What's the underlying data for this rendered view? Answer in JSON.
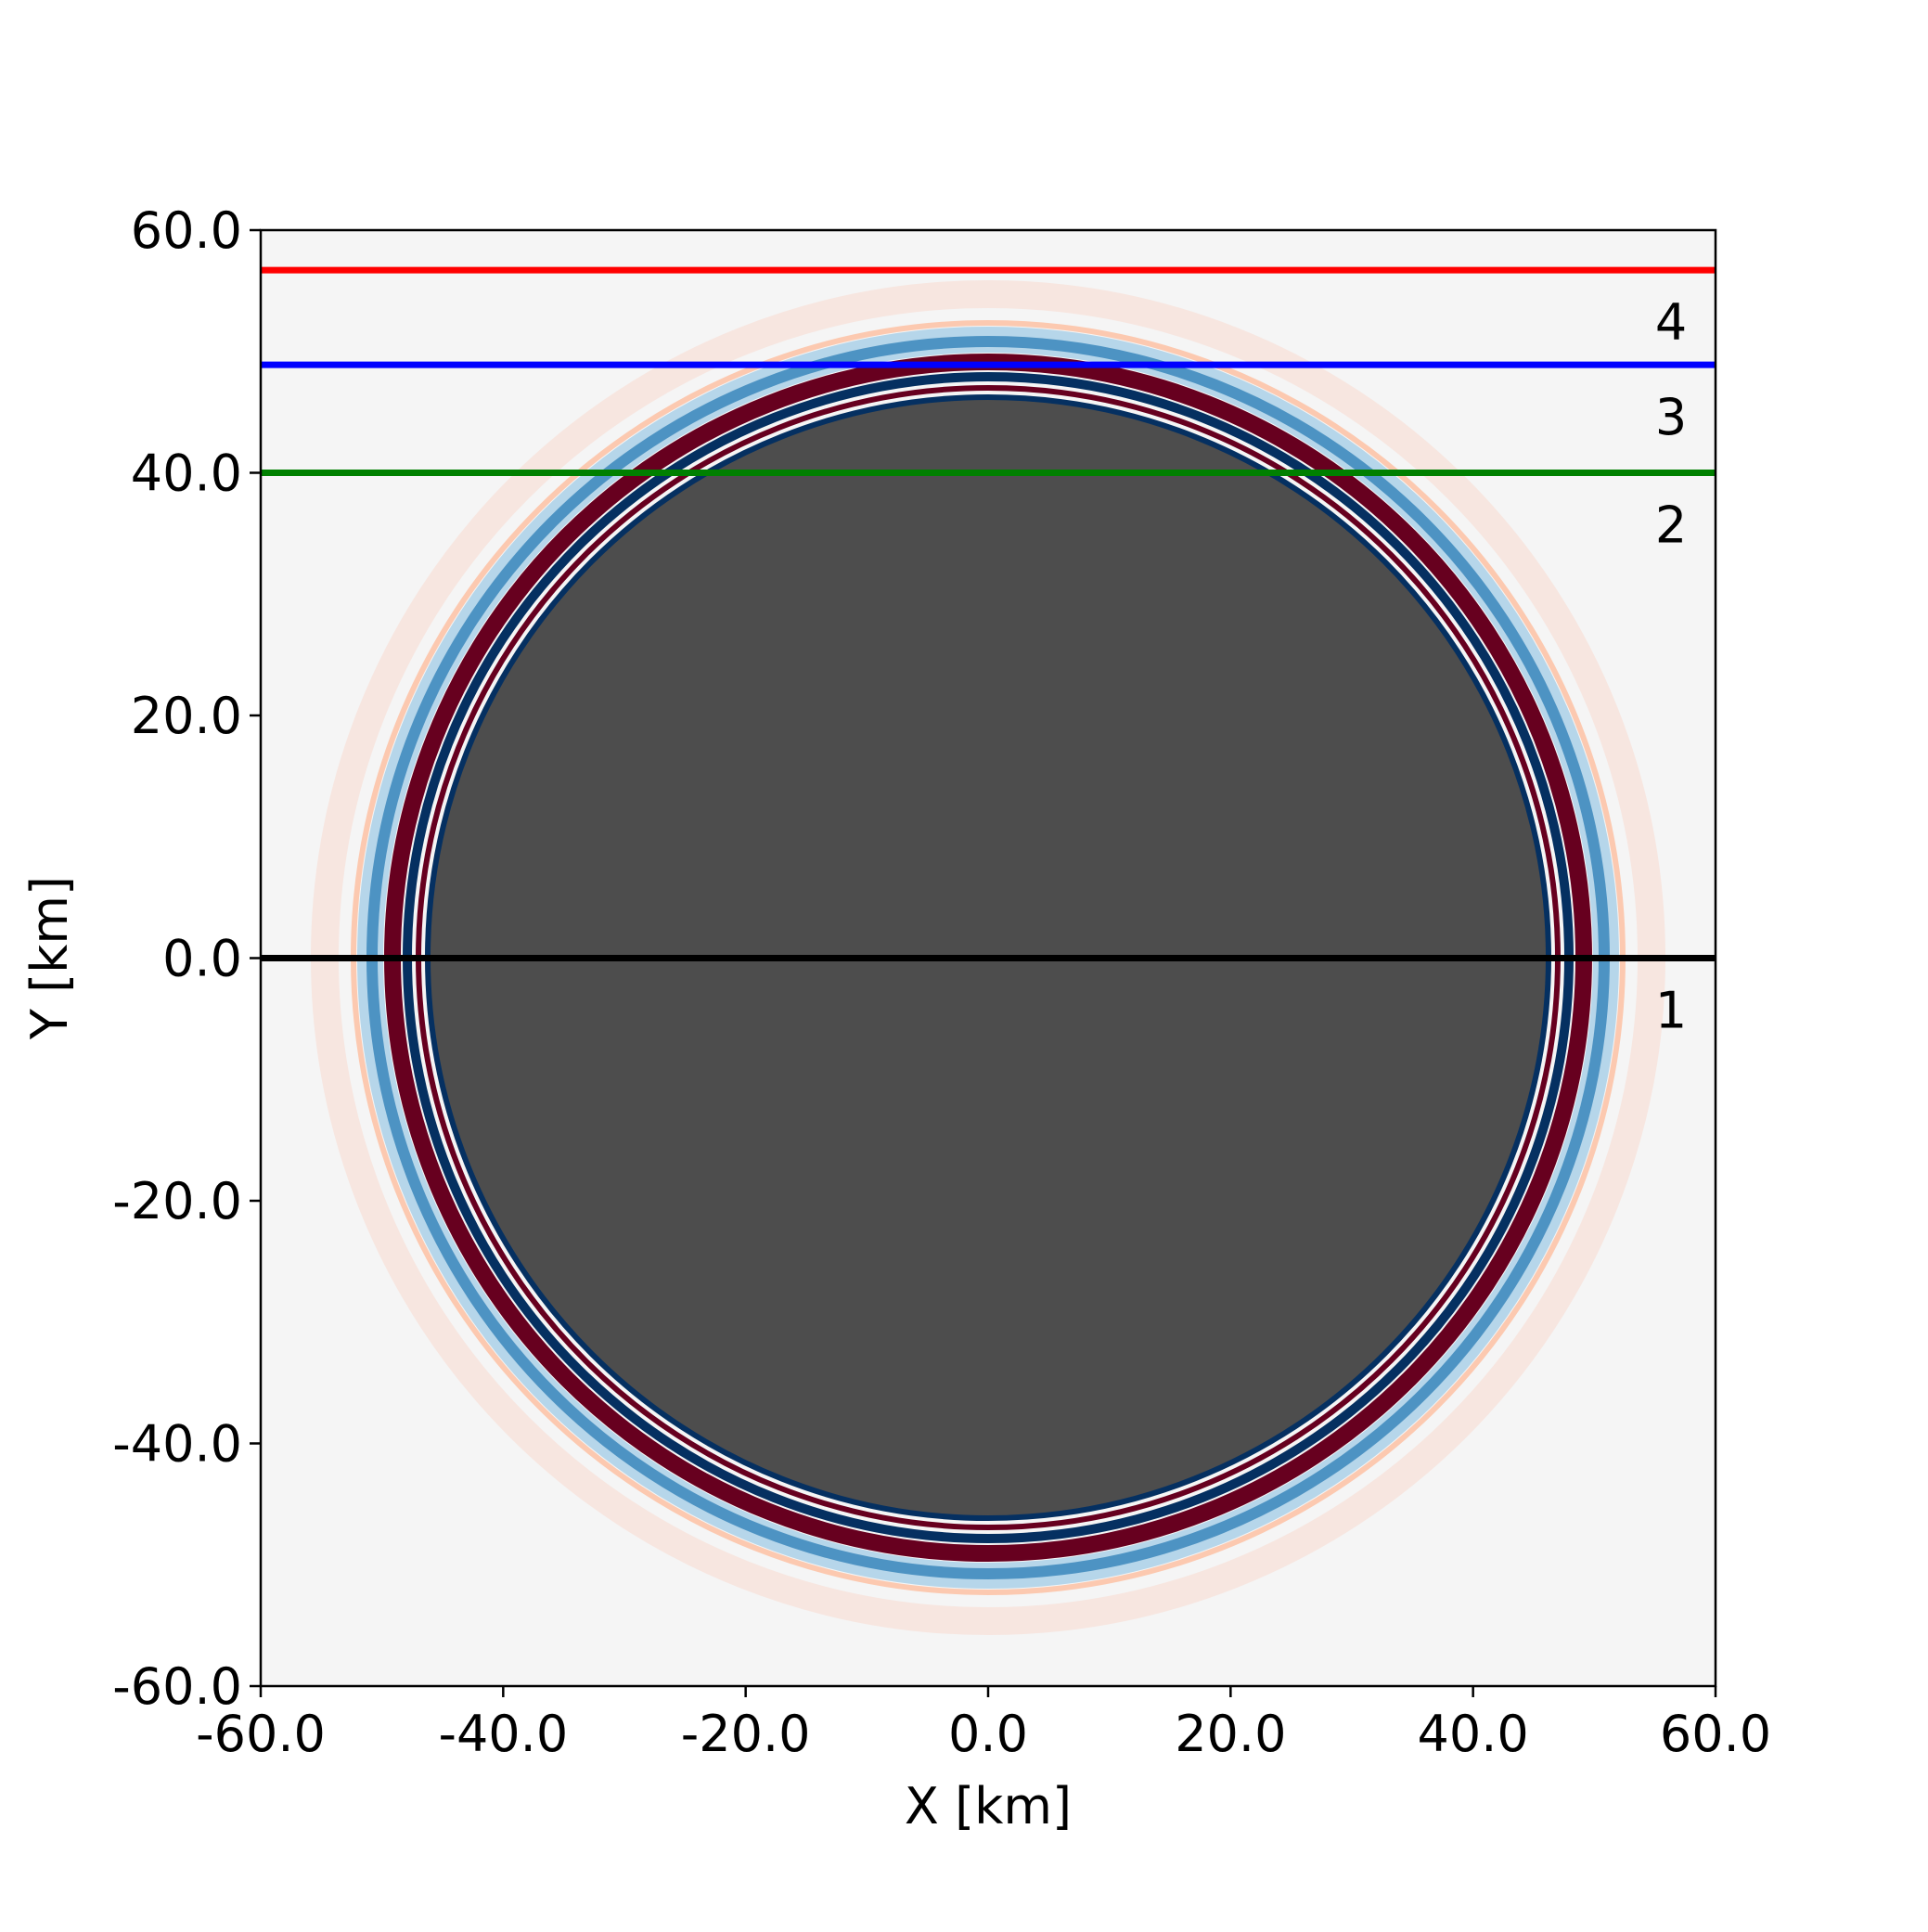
{
  "chart_data": {
    "type": "hlines",
    "xlabel": "X [km]",
    "ylabel": "Y [km]",
    "xlim": [
      -60,
      60
    ],
    "ylim": [
      -60,
      60
    ],
    "xticks": [
      {
        "value": -60,
        "label": "-60.0"
      },
      {
        "value": -40,
        "label": "-40.0"
      },
      {
        "value": -20,
        "label": "-20.0"
      },
      {
        "value": 0,
        "label": "0.0"
      },
      {
        "value": 20,
        "label": "20.0"
      },
      {
        "value": 40,
        "label": "40.0"
      },
      {
        "value": 60,
        "label": "60.0"
      }
    ],
    "yticks": [
      {
        "value": -60,
        "label": "-60.0"
      },
      {
        "value": -40,
        "label": "-40.0"
      },
      {
        "value": -20,
        "label": "-20.0"
      },
      {
        "value": 0,
        "label": "0.0"
      },
      {
        "value": 20,
        "label": "20.0"
      },
      {
        "value": 40,
        "label": "40.0"
      },
      {
        "value": 60,
        "label": "60.0"
      }
    ],
    "series": [
      {
        "name": "1",
        "color": "#000000",
        "values": [
          0
        ]
      },
      {
        "name": "2",
        "color": "#008000",
        "values": [
          40
        ]
      },
      {
        "name": "3",
        "color": "#0000ff",
        "values": [
          48.9
        ]
      },
      {
        "name": "4",
        "color": "#ff0000",
        "values": [
          56.7
        ]
      }
    ]
  }
}
